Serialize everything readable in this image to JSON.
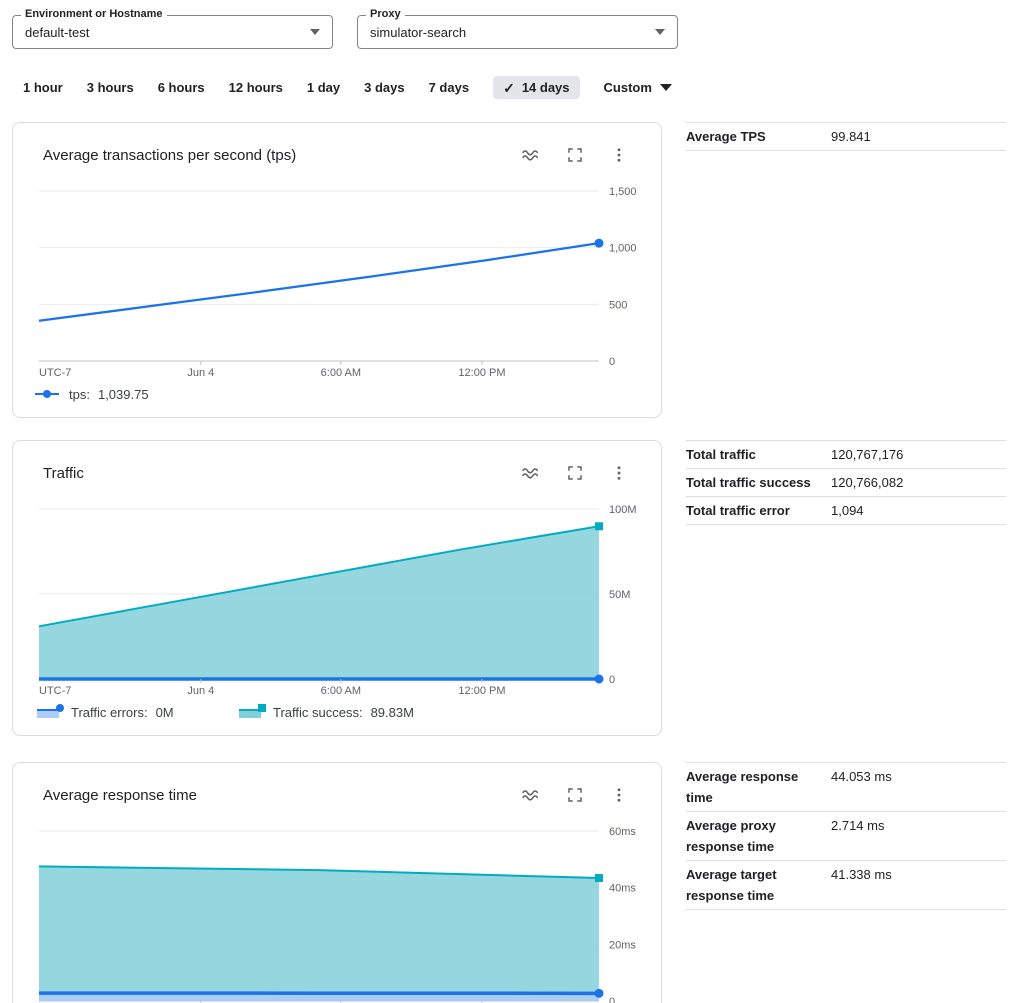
{
  "filters": {
    "environment": {
      "label": "Environment or Hostname",
      "value": "default-test"
    },
    "proxy": {
      "label": "Proxy",
      "value": "simulator-search"
    }
  },
  "time_range": {
    "options": [
      "1 hour",
      "3 hours",
      "6 hours",
      "12 hours",
      "1 day",
      "3 days",
      "7 days",
      "14 days"
    ],
    "selected": "14 days",
    "check_glyph": "✓",
    "custom_label": "Custom"
  },
  "colors": {
    "accent_blue": "#1a73e8",
    "teal": "#00acc1",
    "teal_fill": "#82cfd9",
    "blue_fill": "#aecbfa",
    "axis_text": "#5f6368",
    "gridline": "#e9ebee",
    "axis_line": "#bdc1c6"
  },
  "stats": {
    "tps": [
      {
        "label": "Average TPS",
        "value": "99.841"
      }
    ],
    "traffic": [
      {
        "label": "Total traffic",
        "value": "120,767,176"
      },
      {
        "label": "Total traffic success",
        "value": "120,766,082"
      },
      {
        "label": "Total traffic error",
        "value": "1,094"
      }
    ],
    "response": [
      {
        "label": "Average response time",
        "value": "44.053 ms"
      },
      {
        "label": "Average proxy response time",
        "value": "2.714 ms"
      },
      {
        "label": "Average target response time",
        "value": "41.338 ms"
      }
    ]
  },
  "chart_data": [
    {
      "type": "line",
      "title": "Average transactions per second (tps)",
      "ylim": [
        0,
        1500
      ],
      "yticks": [
        {
          "v": 0,
          "label": "0"
        },
        {
          "v": 500,
          "label": "500"
        },
        {
          "v": 1000,
          "label": "1,000"
        },
        {
          "v": 1500,
          "label": "1,500"
        }
      ],
      "xticks": [
        {
          "pos": 0,
          "label": "UTC-7",
          "anchor": "start",
          "tick": false
        },
        {
          "pos": 0.289,
          "label": "Jun 4"
        },
        {
          "pos": 0.539,
          "label": "6:00 AM"
        },
        {
          "pos": 0.791,
          "label": "12:00 PM"
        }
      ],
      "series": [
        {
          "name": "tps",
          "type": "line",
          "color": "#1a73e8",
          "width": 2.25,
          "marker": "circle",
          "points": [
            [
              0,
              355
            ],
            [
              0.2,
              485
            ],
            [
              0.4,
              615
            ],
            [
              0.6,
              750
            ],
            [
              0.8,
              890
            ],
            [
              1,
              1039.75
            ]
          ]
        }
      ],
      "legend": [
        {
          "label": "tps:",
          "value": "1,039.75",
          "swatch": "line",
          "marker": "circle",
          "color": "#1a73e8",
          "fill": "#aecbfa"
        }
      ]
    },
    {
      "type": "area",
      "title": "Traffic",
      "ylim": [
        0,
        100
      ],
      "yticks": [
        {
          "v": 0,
          "label": "0"
        },
        {
          "v": 50,
          "label": "50M"
        },
        {
          "v": 100,
          "label": "100M"
        }
      ],
      "xticks": [
        {
          "pos": 0,
          "label": "UTC-7",
          "anchor": "start",
          "tick": false
        },
        {
          "pos": 0.289,
          "label": "Jun 4"
        },
        {
          "pos": 0.539,
          "label": "6:00 AM"
        },
        {
          "pos": 0.791,
          "label": "12:00 PM"
        }
      ],
      "series": [
        {
          "name": "Traffic success",
          "type": "area",
          "color": "#00acc1",
          "fill": "#82cfd9",
          "width": 2,
          "marker": "square",
          "points": [
            [
              0,
              31
            ],
            [
              0.25,
              46
            ],
            [
              0.5,
              61
            ],
            [
              0.75,
              76
            ],
            [
              1,
              89.83
            ]
          ]
        },
        {
          "name": "Traffic errors",
          "type": "area",
          "color": "#1a73e8",
          "fill": "#aecbfa",
          "width": 3.5,
          "marker": "circle",
          "points": [
            [
              0,
              0
            ],
            [
              0.5,
              0
            ],
            [
              1,
              0
            ]
          ]
        }
      ],
      "legend": [
        {
          "label": "Traffic errors:",
          "value": "0M",
          "swatch": "area",
          "marker": "circle",
          "color": "#1a73e8",
          "fill": "#aecbfa"
        },
        {
          "label": "Traffic success:",
          "value": "89.83M",
          "swatch": "area",
          "marker": "square",
          "color": "#00acc1",
          "fill": "#82cfd9"
        }
      ]
    },
    {
      "type": "area",
      "title": "Average response time",
      "ylim": [
        0,
        60
      ],
      "yticks": [
        {
          "v": 0,
          "label": "0"
        },
        {
          "v": 20,
          "label": "20ms"
        },
        {
          "v": 40,
          "label": "40ms"
        },
        {
          "v": 60,
          "label": "60ms"
        }
      ],
      "xticks": [
        {
          "pos": 0,
          "label": "UTC-7",
          "anchor": "start",
          "tick": false
        },
        {
          "pos": 0.289,
          "label": "Jun 4"
        },
        {
          "pos": 0.539,
          "label": "6:00 AM"
        },
        {
          "pos": 0.791,
          "label": "12:00 PM"
        }
      ],
      "series": [
        {
          "name": "response time",
          "type": "area",
          "color": "#00acc1",
          "fill": "#82cfd9",
          "width": 2,
          "marker": "square",
          "points": [
            [
              0,
              47.5
            ],
            [
              0.5,
              46.2
            ],
            [
              1,
              43.4
            ]
          ]
        },
        {
          "name": "proxy response time",
          "type": "area",
          "color": "#1a73e8",
          "fill": "#aecbfa",
          "width": 3.5,
          "marker": "circle",
          "points": [
            [
              0,
              2.8
            ],
            [
              0.5,
              2.75
            ],
            [
              1,
              2.71
            ]
          ]
        }
      ]
    }
  ]
}
